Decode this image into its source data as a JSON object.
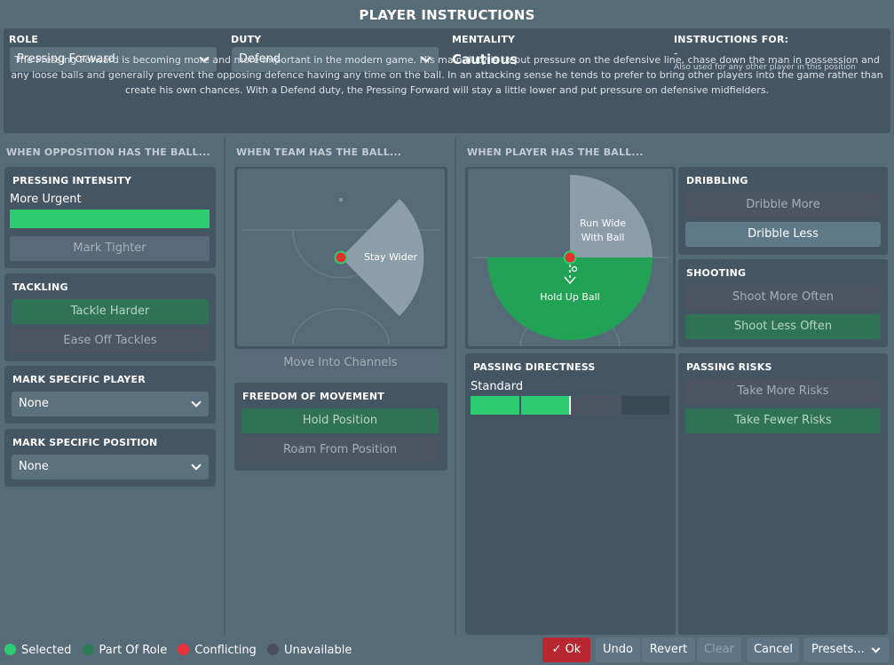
{
  "window": {
    "title": "PLAYER INSTRUCTIONS"
  },
  "header": {
    "role_label": "ROLE",
    "role_value": "Pressing Forward",
    "duty_label": "DUTY",
    "duty_value": "Defend",
    "mentality_label": "MENTALITY",
    "mentality_value": "Cautious",
    "instructions_label": "INSTRUCTIONS FOR:",
    "instructions_value": "-",
    "instructions_note": "Also used for any other player in this position",
    "description": "The Pressing Forward is becoming more and more important in the modern game. His main duty is to put pressure on the defensive line, chase down the man in possession and any loose balls and generally prevent the opposing defence having any time on the ball. In an attacking sense he tends to prefer to bring other players into the game rather than create his own chances. With a Defend duty, the Pressing Forward will stay a little lower and put pressure on defensive midfielders."
  },
  "opposition": {
    "header": "WHEN OPPOSITION HAS THE BALL...",
    "pressing": {
      "title": "PRESSING INTENSITY",
      "value_label": "More Urgent",
      "level": 1.0,
      "mark_tighter": "Mark Tighter"
    },
    "tackling": {
      "title": "TACKLING",
      "harder": "Tackle Harder",
      "ease": "Ease Off Tackles"
    },
    "mark_player": {
      "title": "MARK SPECIFIC PLAYER",
      "value": "None"
    },
    "mark_position": {
      "title": "MARK SPECIFIC POSITION",
      "value": "None"
    }
  },
  "team": {
    "header": "WHEN TEAM HAS THE BALL...",
    "pitch_label": "Stay Wider",
    "channels": "Move Into Channels",
    "freedom": {
      "title": "FREEDOM OF MOVEMENT",
      "hold": "Hold Position",
      "roam": "Roam From Position"
    }
  },
  "player": {
    "header": "WHEN PLAYER HAS THE BALL...",
    "pitch_label_wide": "Run Wide With Ball",
    "pitch_label_hold": "Hold Up Ball",
    "dribbling": {
      "title": "DRIBBLING",
      "more": "Dribble More",
      "less": "Dribble Less"
    },
    "shooting": {
      "title": "SHOOTING",
      "more": "Shoot More Often",
      "less": "Shoot Less Often"
    },
    "passing_directness": {
      "title": "PASSING DIRECTNESS",
      "value_label": "Standard",
      "level": 0.5
    },
    "passing_risks": {
      "title": "PASSING RISKS",
      "more": "Take More Risks",
      "fewer": "Take Fewer Risks"
    }
  },
  "legend": [
    {
      "label": "Selected",
      "color": "#2ecc71"
    },
    {
      "label": "Part Of Role",
      "color": "#2e7a57"
    },
    {
      "label": "Conflicting",
      "color": "#e8333b"
    },
    {
      "label": "Unavailable",
      "color": "#4a4f5a"
    }
  ],
  "footer": {
    "ok": "Ok",
    "undo": "Undo",
    "revert": "Revert",
    "clear": "Clear",
    "cancel": "Cancel",
    "presets": "Presets..."
  },
  "colors": {
    "selected": "#2ecc71",
    "part_of_role": "#2f7255",
    "conflict": "#e8333b",
    "unavailable": "#4e5562",
    "accent_ok": "#b8262f"
  }
}
